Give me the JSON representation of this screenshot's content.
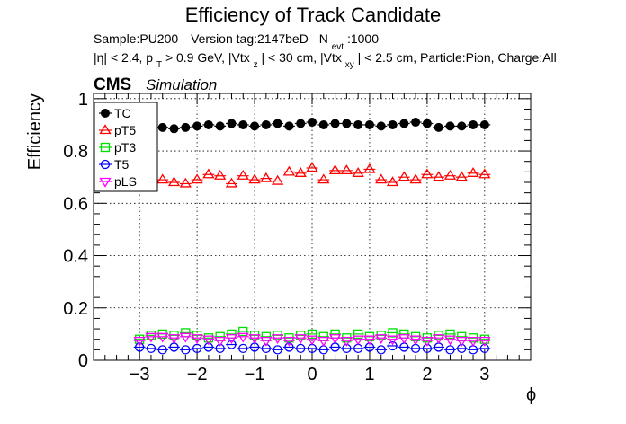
{
  "chart_data": {
    "type": "scatter",
    "title": "Efficiency of Track Candidate",
    "subtitle": {
      "sample": "Sample:PU200",
      "version": "Version tag:2147beD",
      "nevt_n": "N",
      "nevt_sub": "evt",
      "nevt_val": ":1000",
      "cuts_eta": "|η| < 2.4, p",
      "cuts_pt_sub": "T",
      "cuts_pt_rest": " > 0.9 GeV, |Vtx",
      "cuts_z_sub": "z",
      "cuts_z_rest": "| < 30 cm, |Vtx",
      "cuts_xy_sub": "xy",
      "cuts_xy_rest": "| < 2.5 cm, Particle:Pion, Charge:All"
    },
    "cms_label": "CMS",
    "simulation_label": "Simulation",
    "xlabel": "ϕ",
    "ylabel": "Efficiency",
    "xlim": [
      -3.8,
      3.8
    ],
    "ylim": [
      0,
      1.02
    ],
    "xticks": [
      -3,
      -2,
      -1,
      0,
      1,
      2,
      3
    ],
    "xtick_labels": [
      "−3",
      "−2",
      "−1",
      "0",
      "1",
      "2",
      "3"
    ],
    "yticks": [
      0,
      0.2,
      0.4,
      0.6,
      0.8,
      1
    ],
    "ytick_labels": [
      "0",
      "0.2",
      "0.4",
      "0.6",
      "0.8",
      "1"
    ],
    "grid": true,
    "legend_position": "top-left",
    "x": [
      -3.0,
      -2.8,
      -2.6,
      -2.4,
      -2.2,
      -2.0,
      -1.8,
      -1.6,
      -1.4,
      -1.2,
      -1.0,
      -0.8,
      -0.6,
      -0.4,
      -0.2,
      0.0,
      0.2,
      0.4,
      0.6,
      0.8,
      1.0,
      1.2,
      1.4,
      1.6,
      1.8,
      2.0,
      2.2,
      2.4,
      2.6,
      2.8,
      3.0
    ],
    "series": [
      {
        "name": "TC",
        "color": "#000000",
        "marker": "filled-circle",
        "values": [
          0.89,
          0.89,
          0.89,
          0.885,
          0.89,
          0.895,
          0.9,
          0.895,
          0.905,
          0.9,
          0.895,
          0.9,
          0.905,
          0.895,
          0.905,
          0.91,
          0.9,
          0.905,
          0.905,
          0.9,
          0.9,
          0.895,
          0.9,
          0.905,
          0.91,
          0.905,
          0.89,
          0.895,
          0.895,
          0.9,
          0.9
        ]
      },
      {
        "name": "pT5",
        "color": "#ff0000",
        "marker": "open-triangle",
        "values": [
          0.72,
          0.69,
          0.69,
          0.68,
          0.675,
          0.69,
          0.71,
          0.705,
          0.675,
          0.705,
          0.69,
          0.695,
          0.685,
          0.72,
          0.715,
          0.735,
          0.69,
          0.725,
          0.725,
          0.715,
          0.73,
          0.69,
          0.68,
          0.7,
          0.69,
          0.71,
          0.7,
          0.705,
          0.7,
          0.715,
          0.71
        ]
      },
      {
        "name": "pT3",
        "color": "#00dd00",
        "marker": "open-square",
        "values": [
          0.08,
          0.095,
          0.1,
          0.095,
          0.105,
          0.095,
          0.085,
          0.09,
          0.1,
          0.11,
          0.095,
          0.09,
          0.095,
          0.085,
          0.095,
          0.1,
          0.09,
          0.1,
          0.085,
          0.1,
          0.09,
          0.095,
          0.105,
          0.1,
          0.09,
          0.085,
          0.095,
          0.1,
          0.09,
          0.085,
          0.08
        ]
      },
      {
        "name": "T5",
        "color": "#0000ff",
        "marker": "open-circle",
        "values": [
          0.05,
          0.045,
          0.04,
          0.05,
          0.04,
          0.045,
          0.05,
          0.045,
          0.06,
          0.045,
          0.05,
          0.045,
          0.04,
          0.05,
          0.045,
          0.045,
          0.04,
          0.05,
          0.045,
          0.045,
          0.05,
          0.04,
          0.055,
          0.05,
          0.045,
          0.045,
          0.05,
          0.04,
          0.045,
          0.04,
          0.045
        ]
      },
      {
        "name": "pLS",
        "color": "#ff00ff",
        "marker": "open-triangle-down",
        "values": [
          0.075,
          0.09,
          0.09,
          0.085,
          0.09,
          0.085,
          0.08,
          0.075,
          0.085,
          0.09,
          0.085,
          0.075,
          0.085,
          0.075,
          0.085,
          0.08,
          0.075,
          0.085,
          0.075,
          0.08,
          0.08,
          0.085,
          0.08,
          0.085,
          0.08,
          0.075,
          0.085,
          0.08,
          0.075,
          0.075,
          0.075
        ]
      }
    ]
  }
}
